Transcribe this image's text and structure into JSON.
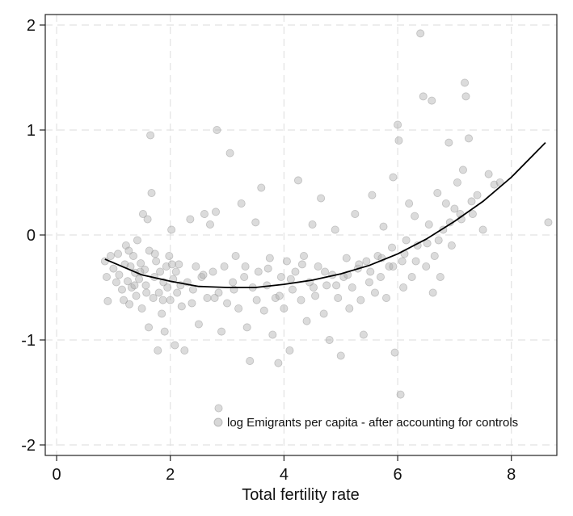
{
  "chart_data": {
    "type": "scatter",
    "title": "",
    "xlabel": "Total fertility rate",
    "ylabel": "",
    "xlim": [
      -0.2,
      8.8
    ],
    "ylim": [
      -2.1,
      2.1
    ],
    "x_ticks": [
      "0",
      "2",
      "4",
      "6",
      "8"
    ],
    "y_ticks": [
      "-2",
      "-1",
      "0",
      "1",
      "2"
    ],
    "grid": true,
    "legend_position": "bottom-right",
    "legend": [
      "log Emigrants per capita - after accounting for controls"
    ],
    "point_color": "#b0b0b0",
    "line_color": "#000000",
    "series": [
      {
        "name": "log Emigrants per capita - after accounting for controls",
        "kind": "scatter",
        "points": [
          [
            0.85,
            -0.25
          ],
          [
            0.88,
            -0.4
          ],
          [
            0.9,
            -0.63
          ],
          [
            0.95,
            -0.2
          ],
          [
            1.0,
            -0.32
          ],
          [
            1.05,
            -0.45
          ],
          [
            1.08,
            -0.18
          ],
          [
            1.1,
            -0.38
          ],
          [
            1.15,
            -0.52
          ],
          [
            1.2,
            -0.28
          ],
          [
            1.22,
            -0.1
          ],
          [
            1.25,
            -0.44
          ],
          [
            1.28,
            -0.66
          ],
          [
            1.3,
            -0.3
          ],
          [
            1.32,
            -0.5
          ],
          [
            1.35,
            -0.2
          ],
          [
            1.38,
            -0.36
          ],
          [
            1.4,
            -0.58
          ],
          [
            1.42,
            -0.05
          ],
          [
            1.45,
            -0.42
          ],
          [
            1.48,
            -0.27
          ],
          [
            1.5,
            -0.7
          ],
          [
            1.52,
            0.2
          ],
          [
            1.55,
            -0.33
          ],
          [
            1.57,
            -0.48
          ],
          [
            1.6,
            0.15
          ],
          [
            1.62,
            -0.88
          ],
          [
            1.63,
            -0.15
          ],
          [
            1.65,
            0.95
          ],
          [
            1.67,
            0.4
          ],
          [
            1.7,
            -0.6
          ],
          [
            1.72,
            -0.4
          ],
          [
            1.75,
            -0.25
          ],
          [
            1.78,
            -1.1
          ],
          [
            1.8,
            -0.55
          ],
          [
            1.82,
            -0.35
          ],
          [
            1.85,
            -0.75
          ],
          [
            1.88,
            -0.45
          ],
          [
            1.9,
            -0.92
          ],
          [
            1.93,
            -0.3
          ],
          [
            1.95,
            -0.5
          ],
          [
            1.98,
            -0.2
          ],
          [
            2.0,
            -0.62
          ],
          [
            2.02,
            0.05
          ],
          [
            2.05,
            -0.42
          ],
          [
            2.08,
            -1.05
          ],
          [
            2.1,
            -0.35
          ],
          [
            2.12,
            -0.55
          ],
          [
            2.15,
            -0.28
          ],
          [
            2.2,
            -0.68
          ],
          [
            2.25,
            -1.1
          ],
          [
            2.3,
            -0.45
          ],
          [
            2.35,
            0.15
          ],
          [
            2.4,
            -0.52
          ],
          [
            2.45,
            -0.3
          ],
          [
            2.5,
            -0.85
          ],
          [
            2.55,
            -0.4
          ],
          [
            2.6,
            0.2
          ],
          [
            2.65,
            -0.6
          ],
          [
            2.7,
            0.1
          ],
          [
            2.75,
            -0.35
          ],
          [
            2.8,
            0.22
          ],
          [
            2.82,
            1.0
          ],
          [
            2.85,
            -0.55
          ],
          [
            2.9,
            -0.92
          ],
          [
            2.95,
            -0.3
          ],
          [
            3.0,
            -0.65
          ],
          [
            3.05,
            0.78
          ],
          [
            3.1,
            -0.45
          ],
          [
            3.15,
            -0.2
          ],
          [
            3.2,
            -0.7
          ],
          [
            3.25,
            0.3
          ],
          [
            3.3,
            -0.4
          ],
          [
            3.35,
            -0.88
          ],
          [
            3.4,
            -1.2
          ],
          [
            3.45,
            -0.5
          ],
          [
            3.5,
            0.12
          ],
          [
            3.55,
            -0.35
          ],
          [
            3.6,
            0.45
          ],
          [
            3.65,
            -0.72
          ],
          [
            3.7,
            -0.48
          ],
          [
            3.75,
            -0.22
          ],
          [
            3.8,
            -0.95
          ],
          [
            3.85,
            -0.6
          ],
          [
            3.9,
            -1.22
          ],
          [
            3.95,
            -0.4
          ],
          [
            4.0,
            -0.7
          ],
          [
            4.05,
            -0.25
          ],
          [
            4.1,
            -1.1
          ],
          [
            4.15,
            -0.52
          ],
          [
            4.2,
            -0.35
          ],
          [
            4.25,
            0.52
          ],
          [
            4.3,
            -0.62
          ],
          [
            4.35,
            -0.2
          ],
          [
            4.4,
            -0.82
          ],
          [
            4.45,
            -0.45
          ],
          [
            4.5,
            0.1
          ],
          [
            4.55,
            -0.58
          ],
          [
            4.6,
            -0.3
          ],
          [
            4.65,
            0.35
          ],
          [
            4.7,
            -0.75
          ],
          [
            4.75,
            -0.48
          ],
          [
            4.8,
            -1.0
          ],
          [
            4.85,
            -0.38
          ],
          [
            4.9,
            0.05
          ],
          [
            4.95,
            -0.6
          ],
          [
            5.0,
            -1.15
          ],
          [
            5.05,
            -0.4
          ],
          [
            5.1,
            -0.22
          ],
          [
            5.15,
            -0.7
          ],
          [
            5.2,
            -0.5
          ],
          [
            5.25,
            0.2
          ],
          [
            5.3,
            -0.32
          ],
          [
            5.35,
            -0.62
          ],
          [
            5.4,
            -0.95
          ],
          [
            5.45,
            -0.25
          ],
          [
            5.5,
            -0.45
          ],
          [
            5.55,
            0.38
          ],
          [
            5.6,
            -0.55
          ],
          [
            5.65,
            -0.2
          ],
          [
            5.7,
            -0.4
          ],
          [
            5.75,
            0.08
          ],
          [
            5.8,
            -0.6
          ],
          [
            5.85,
            -0.3
          ],
          [
            5.9,
            -0.12
          ],
          [
            5.92,
            0.55
          ],
          [
            5.95,
            -1.12
          ],
          [
            6.0,
            1.05
          ],
          [
            6.02,
            0.9
          ],
          [
            6.05,
            -1.52
          ],
          [
            6.08,
            -0.25
          ],
          [
            6.1,
            -0.5
          ],
          [
            6.15,
            -0.05
          ],
          [
            6.2,
            0.3
          ],
          [
            6.25,
            -0.4
          ],
          [
            6.3,
            0.18
          ],
          [
            6.35,
            -0.1
          ],
          [
            6.4,
            1.92
          ],
          [
            6.45,
            1.32
          ],
          [
            6.5,
            -0.3
          ],
          [
            6.55,
            0.1
          ],
          [
            6.6,
            1.28
          ],
          [
            6.62,
            -0.55
          ],
          [
            6.65,
            -0.2
          ],
          [
            6.7,
            0.4
          ],
          [
            6.75,
            -0.4
          ],
          [
            6.8,
            0.05
          ],
          [
            6.85,
            0.3
          ],
          [
            6.9,
            0.88
          ],
          [
            6.95,
            -0.1
          ],
          [
            7.0,
            0.25
          ],
          [
            7.05,
            0.5
          ],
          [
            7.1,
            0.2
          ],
          [
            7.15,
            0.62
          ],
          [
            7.18,
            1.45
          ],
          [
            7.2,
            1.32
          ],
          [
            7.25,
            0.92
          ],
          [
            7.3,
            0.32
          ],
          [
            7.4,
            0.38
          ],
          [
            7.5,
            0.05
          ],
          [
            7.6,
            0.58
          ],
          [
            7.7,
            0.48
          ],
          [
            7.8,
            0.5
          ],
          [
            8.65,
            0.12
          ],
          [
            1.18,
            -0.62
          ],
          [
            1.27,
            -0.15
          ],
          [
            1.37,
            -0.48
          ],
          [
            1.47,
            -0.35
          ],
          [
            1.58,
            -0.55
          ],
          [
            1.73,
            -0.18
          ],
          [
            1.87,
            -0.62
          ],
          [
            2.03,
            -0.28
          ],
          [
            2.18,
            -0.48
          ],
          [
            2.38,
            -0.65
          ],
          [
            2.58,
            -0.38
          ],
          [
            2.78,
            -0.6
          ],
          [
            3.12,
            -0.52
          ],
          [
            3.32,
            -0.3
          ],
          [
            3.52,
            -0.62
          ],
          [
            3.72,
            -0.32
          ],
          [
            3.92,
            -0.58
          ],
          [
            4.12,
            -0.42
          ],
          [
            4.32,
            -0.28
          ],
          [
            4.52,
            -0.5
          ],
          [
            4.72,
            -0.35
          ],
          [
            4.92,
            -0.48
          ],
          [
            5.12,
            -0.38
          ],
          [
            5.32,
            -0.28
          ],
          [
            5.52,
            -0.35
          ],
          [
            5.72,
            -0.22
          ],
          [
            5.92,
            -0.3
          ],
          [
            6.12,
            -0.18
          ],
          [
            6.32,
            -0.25
          ],
          [
            6.52,
            -0.08
          ],
          [
            6.72,
            -0.05
          ],
          [
            6.92,
            0.12
          ],
          [
            7.12,
            0.15
          ],
          [
            7.32,
            0.2
          ],
          [
            2.85,
            -1.65
          ]
        ]
      },
      {
        "name": "",
        "kind": "line",
        "x": [
          0.85,
          1.5,
          2.0,
          2.5,
          3.0,
          3.5,
          4.0,
          4.5,
          5.0,
          5.5,
          6.0,
          6.5,
          7.0,
          7.5,
          8.0,
          8.6
        ],
        "y": [
          -0.23,
          -0.38,
          -0.44,
          -0.49,
          -0.5,
          -0.5,
          -0.47,
          -0.43,
          -0.37,
          -0.29,
          -0.18,
          -0.04,
          0.13,
          0.32,
          0.55,
          0.88
        ]
      }
    ]
  }
}
